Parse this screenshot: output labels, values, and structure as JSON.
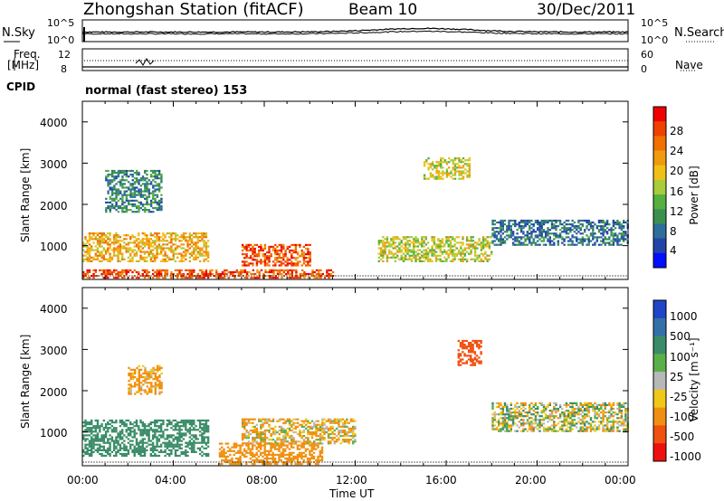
{
  "header": {
    "station": "Zhongshan Station (fitACF)",
    "beam": "Beam 10",
    "date": "30/Dec/2011"
  },
  "top_panel": {
    "left_label": "N.Sky",
    "right_label": "N.Search",
    "left_ticks": [
      "10^5",
      "10^0"
    ],
    "right_ticks": [
      "10^5",
      "10^0"
    ]
  },
  "freq_panel": {
    "left_label_1": "Freq.",
    "left_label_2": "[MHz]",
    "left_ticks": [
      "12",
      "8"
    ],
    "right_label": "Nave",
    "right_ticks": [
      "60",
      "0"
    ]
  },
  "cpid": {
    "label": "CPID",
    "text": "normal (fast stereo) 153"
  },
  "x_axis": {
    "label": "Time UT",
    "ticks": [
      "00:00",
      "04:00",
      "08:00",
      "12:00",
      "16:00",
      "20:00",
      "00:00"
    ]
  },
  "power_panel": {
    "ylabel": "Slant Range [km]",
    "yticks": [
      "4000",
      "3000",
      "2000",
      "1000"
    ],
    "colorbar_label": "Power [dB]",
    "colorbar_ticks": [
      "28",
      "24",
      "20",
      "16",
      "12",
      "8",
      "4"
    ],
    "colors": [
      "#0010ff",
      "#2244aa",
      "#2e6e9a",
      "#3b9050",
      "#55b040",
      "#a8cc3a",
      "#f0c018",
      "#f09a10",
      "#f07000",
      "#f04000",
      "#f00000"
    ]
  },
  "velocity_panel": {
    "ylabel": "Slant Range [km]",
    "yticks": [
      "4000",
      "3000",
      "2000",
      "1000"
    ],
    "colorbar_label": "Velocity [m s⁻¹]",
    "colorbar_ticks": [
      "1000",
      "500",
      "100",
      "25",
      "-25",
      "-100",
      "-500",
      "-1000"
    ],
    "colors": [
      "#1f44c8",
      "#3370a8",
      "#3a8c68",
      "#5ab048",
      "#b8b8b8",
      "#f0c818",
      "#f09010",
      "#f05010",
      "#ee1010"
    ]
  },
  "chart_data": [
    {
      "type": "heatmap",
      "title": "Zhongshan Station (fitACF) Beam 10 30/Dec/2011",
      "quantity": "Power [dB]",
      "xlabel": "Time UT",
      "ylabel": "Slant Range [km]",
      "xlim": [
        "00:00",
        "24:00"
      ],
      "ylim": [
        180,
        4500
      ],
      "colorbar_range": [
        0,
        30
      ],
      "regions": [
        {
          "t": [
            0.0,
            5.5
          ],
          "range_km": [
            600,
            1300
          ],
          "power_db": 20
        },
        {
          "t": [
            0.0,
            11.0
          ],
          "range_km": [
            200,
            400
          ],
          "power_db": 26
        },
        {
          "t": [
            7.0,
            10.0
          ],
          "range_km": [
            500,
            1000
          ],
          "power_db": 26
        },
        {
          "t": [
            13.0,
            18.0
          ],
          "range_km": [
            600,
            1200
          ],
          "power_db": 16
        },
        {
          "t": [
            1.0,
            3.5
          ],
          "range_km": [
            1800,
            2800
          ],
          "power_db": 8
        },
        {
          "t": [
            15.0,
            17.0
          ],
          "range_km": [
            2600,
            3100
          ],
          "power_db": 16
        },
        {
          "t": [
            18.0,
            24.0
          ],
          "range_km": [
            1000,
            1600
          ],
          "power_db": 6
        }
      ]
    },
    {
      "type": "heatmap",
      "quantity": "Velocity [m s⁻¹]",
      "xlabel": "Time UT",
      "ylabel": "Slant Range [km]",
      "xlim": [
        "00:00",
        "24:00"
      ],
      "ylim": [
        180,
        4500
      ],
      "colorbar_levels": [
        1000,
        500,
        100,
        25,
        -25,
        -100,
        -500,
        -1000
      ],
      "regions": [
        {
          "t": [
            0.0,
            5.5
          ],
          "range_km": [
            400,
            1300
          ],
          "velocity_ms": 300
        },
        {
          "t": [
            6.0,
            10.5
          ],
          "range_km": [
            200,
            700
          ],
          "velocity_ms": -300
        },
        {
          "t": [
            7.0,
            12.0
          ],
          "range_km": [
            700,
            1300
          ],
          "velocity_ms": -100
        },
        {
          "t": [
            2.0,
            3.5
          ],
          "range_km": [
            1900,
            2600
          ],
          "velocity_ms": -200
        },
        {
          "t": [
            16.5,
            17.5
          ],
          "range_km": [
            2600,
            3200
          ],
          "velocity_ms": -800
        },
        {
          "t": [
            18.0,
            24.0
          ],
          "range_km": [
            1000,
            1700
          ],
          "velocity_ms": 0
        }
      ]
    }
  ]
}
